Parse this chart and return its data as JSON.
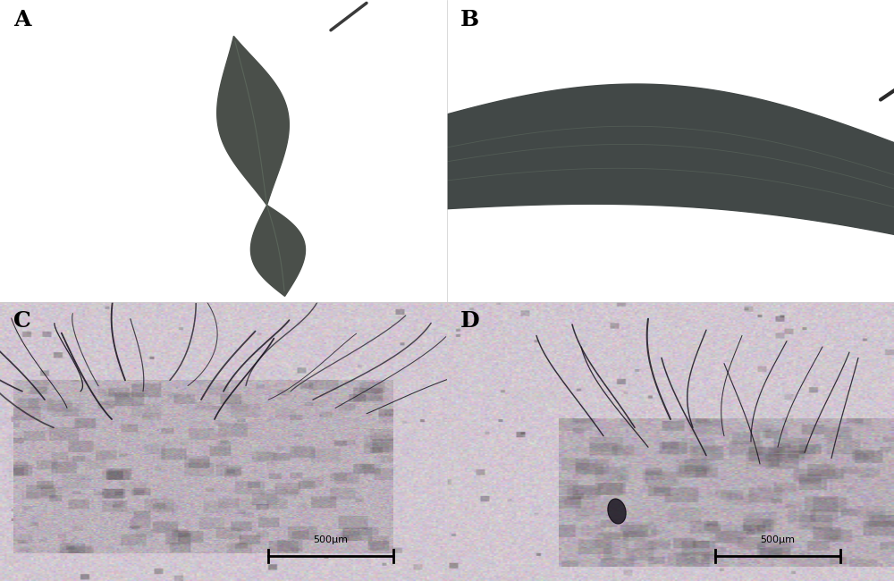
{
  "panel_labels": [
    "A",
    "B",
    "C",
    "D"
  ],
  "label_fontsize": 18,
  "label_color": "#000000",
  "background_color": "#ffffff",
  "leaf_color_a": "#4a4f4a",
  "leaf_color_b": "#424847",
  "leaf_highlight": "#7a8a7a",
  "micro_bg_color": [
    0.82,
    0.78,
    0.82
  ],
  "scale_bar_text": "500μm",
  "figsize": [
    10.0,
    6.5
  ],
  "dpi": 100
}
